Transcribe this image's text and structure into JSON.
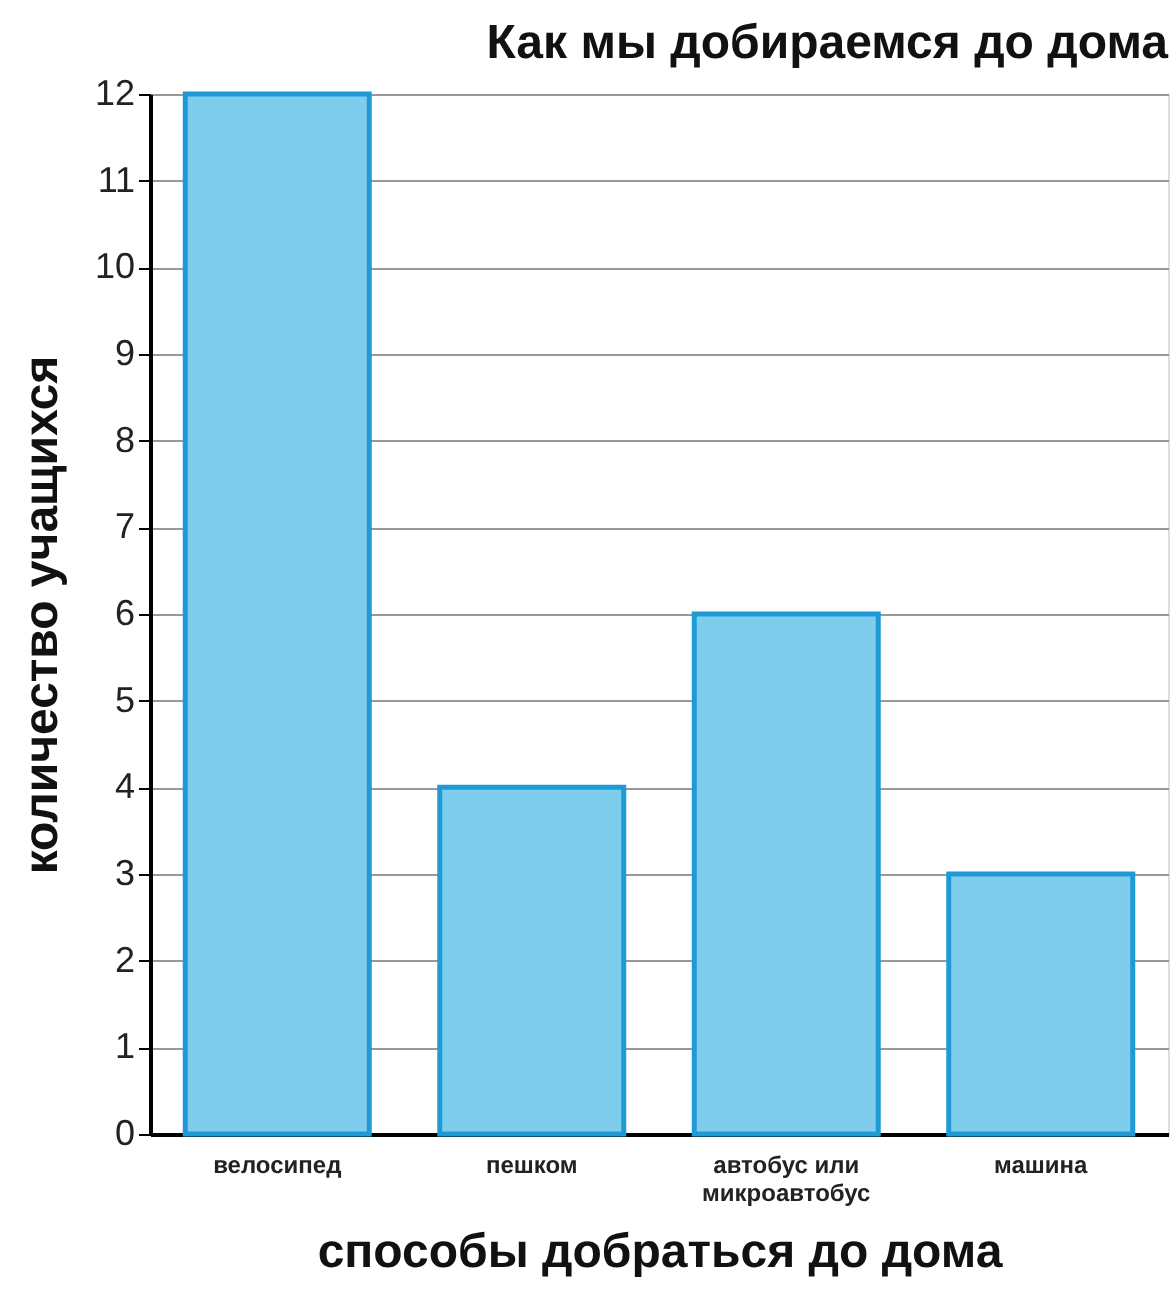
{
  "chart_data": {
    "type": "bar",
    "title": "Как мы добираемся до дома",
    "xlabel": "способы добраться до дома",
    "ylabel": "количество учащихся",
    "categories": [
      "велосипед",
      "пешком",
      "автобус или\nмикроавтобус",
      "машина"
    ],
    "values": [
      12,
      4,
      6,
      3
    ],
    "color": "#7fcdec",
    "ylim": [
      0,
      12
    ],
    "yticks": [
      0,
      1,
      2,
      3,
      4,
      5,
      6,
      7,
      8,
      9,
      10,
      11,
      12
    ],
    "grid": "y"
  }
}
